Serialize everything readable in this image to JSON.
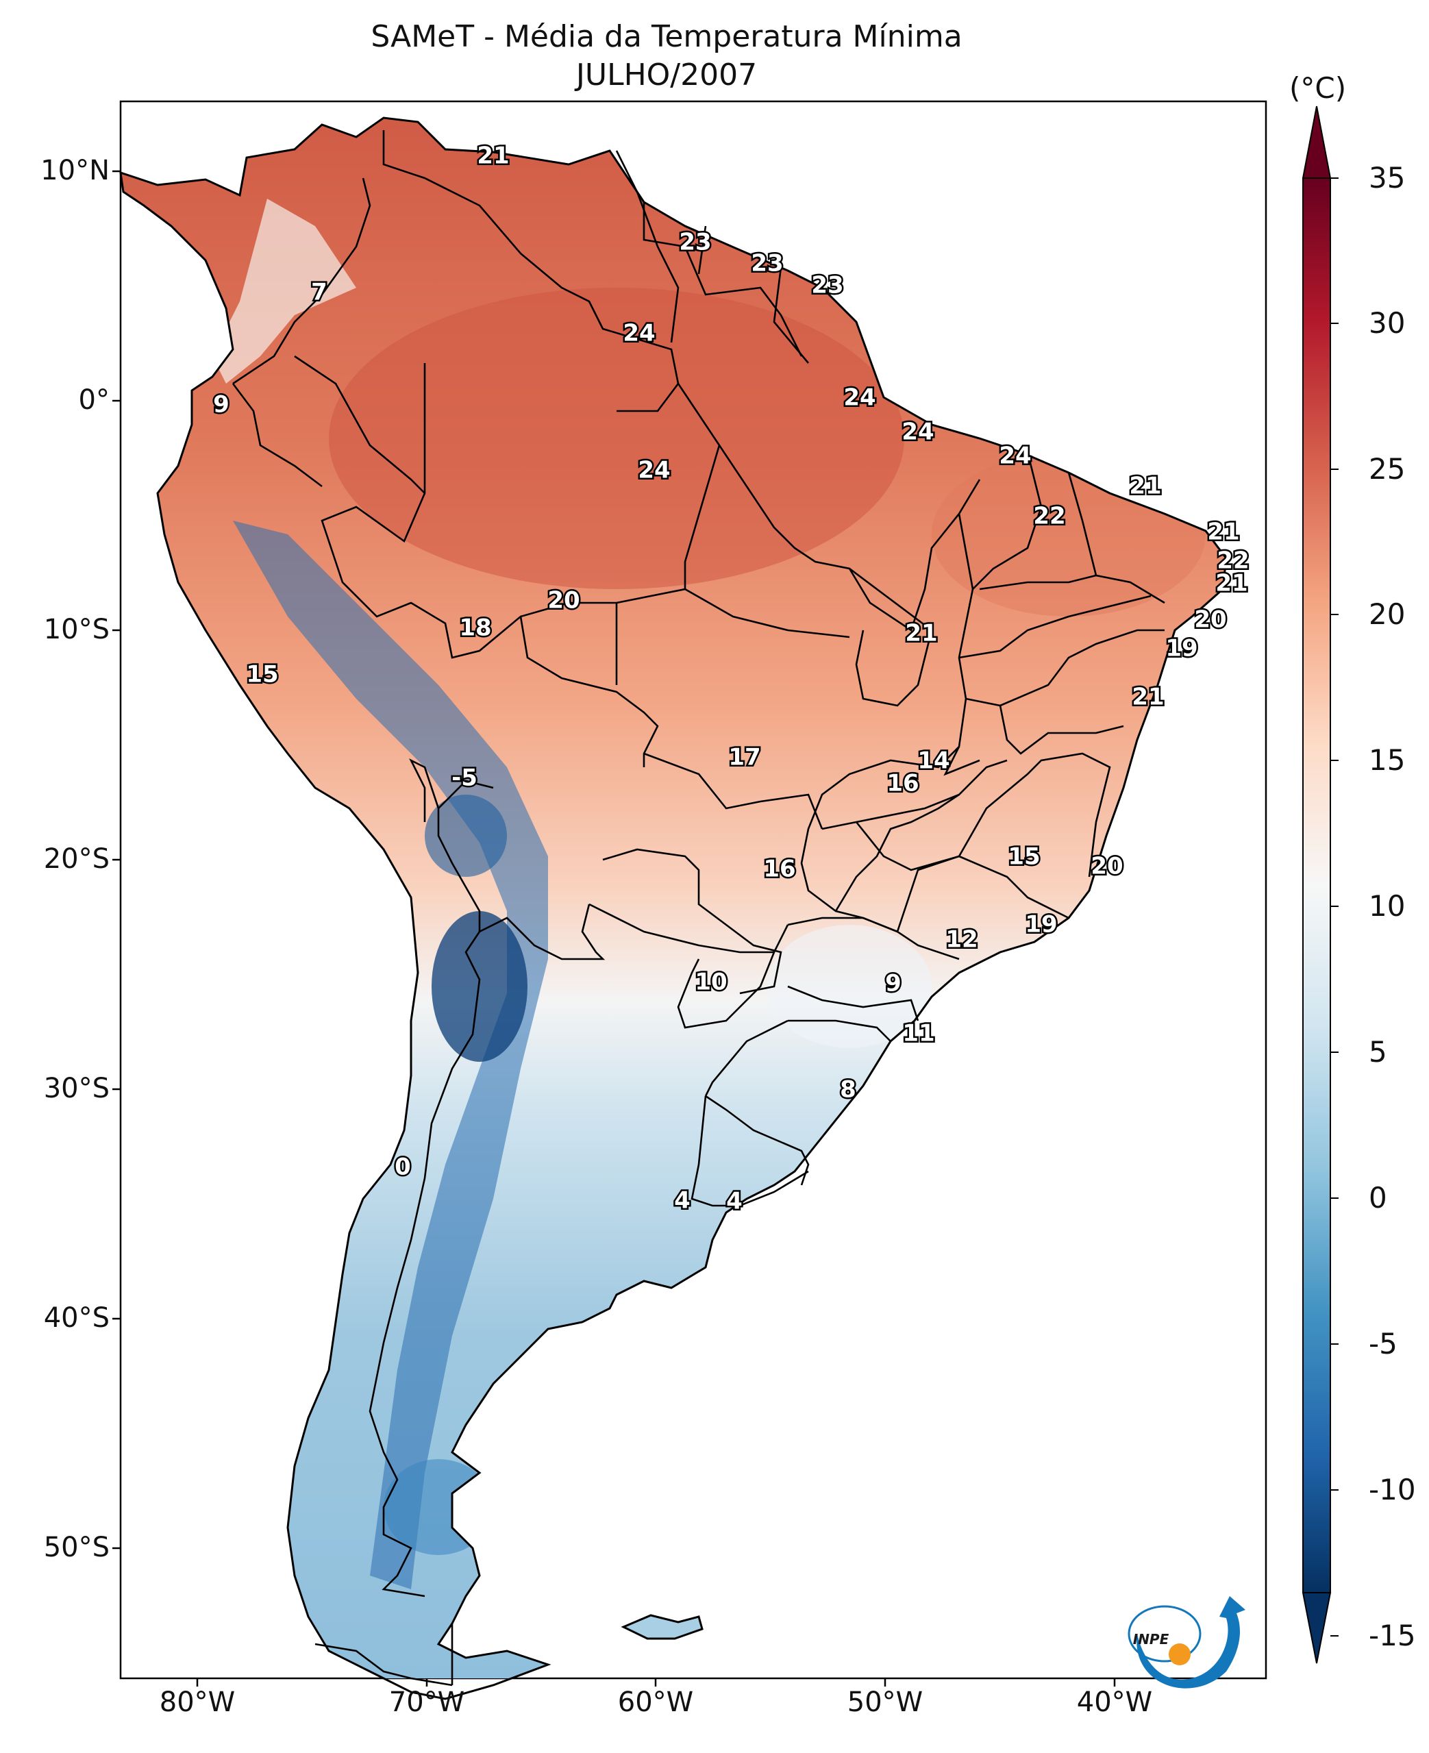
{
  "title": {
    "line1": "SAMeT - Média da Temperatura Mínima",
    "line2": "JULHO/2007"
  },
  "colorbar": {
    "unit": "(°C)",
    "ticks": [
      "35",
      "30",
      "25",
      "20",
      "15",
      "10",
      "5",
      "0",
      "-5",
      "-10",
      "-15"
    ],
    "min": -15,
    "max": 35,
    "colormap": "RdBu_r",
    "colors": [
      "#053061",
      "#2166ac",
      "#4393c3",
      "#92c5de",
      "#d1e5f0",
      "#f7f7f7",
      "#fddbc7",
      "#f4a582",
      "#d6604d",
      "#b2182b",
      "#67001f"
    ]
  },
  "axes": {
    "latitude_labels": [
      "10°N",
      "0°",
      "10°S",
      "20°S",
      "30°S",
      "40°S",
      "50°S"
    ],
    "longitude_labels": [
      "80°W",
      "70°W",
      "60°W",
      "50°W",
      "40°W"
    ]
  },
  "map_labels": [
    "21",
    "23",
    "23",
    "23",
    "7",
    "24",
    "9",
    "24",
    "24",
    "24",
    "24",
    "21",
    "22",
    "21",
    "22",
    "21",
    "20",
    "20",
    "18",
    "21",
    "19",
    "15",
    "21",
    "17",
    "14",
    "16",
    "-5",
    "16",
    "15",
    "20",
    "12",
    "19",
    "10",
    "9",
    "11",
    "8",
    "0",
    "4",
    "4"
  ],
  "logo": {
    "text": "INPE"
  }
}
